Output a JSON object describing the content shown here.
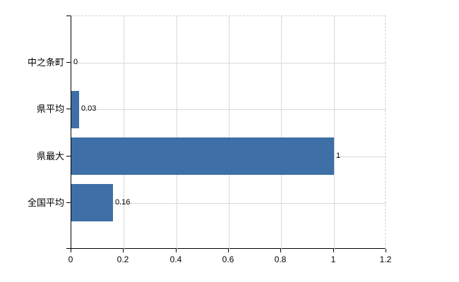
{
  "chart_data": {
    "type": "bar",
    "orientation": "horizontal",
    "title": "",
    "xlabel": "",
    "ylabel": "",
    "categories": [
      "中之条町",
      "県平均",
      "県最大",
      "全国平均"
    ],
    "values": [
      0,
      0.03,
      1,
      0.16
    ],
    "value_labels": [
      "0",
      "0.03",
      "1",
      "0.16"
    ],
    "x_tick_labels": [
      "0",
      "0.2",
      "0.4",
      "0.6",
      "0.8",
      "1",
      "1.2"
    ],
    "x_tick_values": [
      0,
      0.2,
      0.4,
      0.6,
      0.8,
      1.0,
      1.2
    ],
    "xlim": [
      0,
      1.2
    ],
    "grid": "on",
    "legend_position": "none",
    "colors": {
      "bar": "#3e6fa7",
      "grid": "#d9d9d9",
      "axis": "#000000",
      "dashed_border": "#d2d2d2",
      "text": "#000000",
      "background": "#ffffff"
    }
  }
}
